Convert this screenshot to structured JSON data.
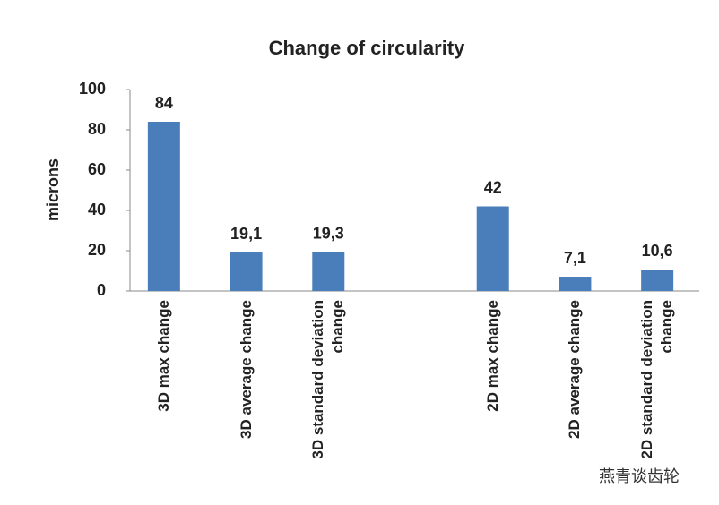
{
  "chart_data": {
    "type": "bar",
    "title": "Change of circularity",
    "y_label": "microns",
    "categories": [
      "3D max change",
      "3D average change",
      "3D standard deviation change",
      null,
      "2D max change",
      "2D average change",
      "2D standard deviation change"
    ],
    "values": [
      84,
      19.1,
      19.3,
      null,
      42,
      7.1,
      10.6
    ],
    "value_labels": [
      "84",
      "19,1",
      "19,3",
      null,
      "42",
      "7,1",
      "10,6"
    ],
    "color": "#4a7ebb",
    "ylim": [
      0,
      100
    ],
    "yticks": [
      0,
      20,
      40,
      60,
      80,
      100
    ],
    "grid": false,
    "watermark": "燕青谈齿轮"
  }
}
